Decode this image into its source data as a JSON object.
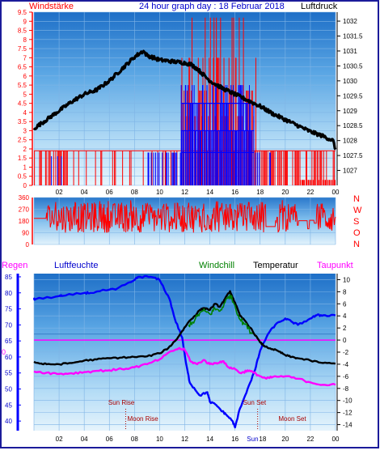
{
  "header": {
    "left_label": "Windstärke",
    "title": "24 hour graph day : 18 Februar 2018",
    "right_label": "Luftdruck"
  },
  "legend2": {
    "rain": "Regen",
    "humidity": "Luftfeuchte",
    "windchill": "Windchill",
    "temperature": "Temperatur",
    "dewpoint": "Taupunkt"
  },
  "compass": [
    "N",
    "W",
    "S",
    "O",
    "N"
  ],
  "sun_moon": {
    "sun_rise": "Sun Rise",
    "sun_set": "Sun Set",
    "moon_rise": "Moon Rise",
    "moon_set": "Moon Set",
    "sun_label": "Sun",
    "sun_time": "18"
  },
  "colors": {
    "wind": "#ff0000",
    "gust": "#0000ff",
    "pressure": "#000000",
    "humidity": "#0000ff",
    "temperature": "#000000",
    "windchill": "#008000",
    "dewpoint": "#ff00ff",
    "zero_line": "#ff00ff",
    "frame": "#0000ff"
  },
  "chart_data": [
    {
      "type": "bar",
      "name": "wind_pressure",
      "x_ticks": [
        "02",
        "04",
        "06",
        "08",
        "10",
        "12",
        "14",
        "16",
        "18",
        "20",
        "22",
        "00"
      ],
      "wind_axis": {
        "ylim": [
          0,
          9.5
        ],
        "ticks": [
          "0",
          "0.5",
          "1",
          "1.5",
          "2",
          "2.5",
          "3",
          "3.5",
          "4",
          "4.5",
          "5",
          "5.5",
          "6",
          "6.5",
          "7",
          "7.5",
          "8",
          "8.5",
          "9",
          "9.5"
        ]
      },
      "pressure_axis": {
        "ylim": [
          1026.5,
          1032.3
        ],
        "ticks": [
          "1027",
          "1027.5",
          "1028",
          "1028.5",
          "1029",
          "1029.5",
          "1030",
          "1030.5",
          "1031",
          "1031.5",
          "1032"
        ]
      },
      "pressure": {
        "x": [
          0,
          1,
          2,
          3,
          4,
          5,
          6,
          7,
          8,
          8.7,
          9,
          10,
          11,
          12,
          12.5,
          13,
          14,
          15,
          16,
          17,
          18,
          19,
          20,
          21,
          22,
          23,
          23.8,
          24
        ],
        "y": [
          1028.4,
          1028.7,
          1029.0,
          1029.3,
          1029.55,
          1029.7,
          1030.0,
          1030.4,
          1030.8,
          1031.0,
          1030.85,
          1030.7,
          1030.65,
          1030.6,
          1030.55,
          1030.4,
          1030.0,
          1029.75,
          1029.55,
          1029.35,
          1029.15,
          1028.9,
          1028.7,
          1028.5,
          1028.3,
          1028.15,
          1028.0,
          1027.7
        ]
      },
      "wind_levels": [
        1.9,
        3.8,
        5.2,
        7.0,
        9.2
      ],
      "gust_levels": [
        1.8,
        3.0,
        4.5,
        5.5
      ]
    },
    {
      "type": "scatter",
      "name": "wind_direction",
      "ylim": [
        0,
        360
      ],
      "y_ticks": [
        "0",
        "90",
        "180",
        "270",
        "360"
      ]
    },
    {
      "type": "line",
      "name": "humidity_temperature",
      "humidity_axis": {
        "ylim": [
          37,
          86
        ],
        "ticks": [
          "40",
          "45",
          "50",
          "55",
          "60",
          "65",
          "70",
          "75",
          "80",
          "85"
        ]
      },
      "temp_axis": {
        "ylim": [
          -15,
          11
        ],
        "ticks": [
          "10",
          "8",
          "6",
          "4",
          "2",
          "0",
          "-2",
          "-4",
          "-6",
          "-8",
          "-10",
          "-12",
          "-14"
        ]
      },
      "humidity": {
        "x": [
          0,
          0.1,
          2,
          2.2,
          4,
          4.5,
          6,
          6.5,
          8,
          8.3,
          9.3,
          10,
          10.8,
          11.2,
          11.8,
          12.1,
          12.4,
          12.8,
          13.2,
          13.8,
          14,
          14.5,
          15,
          15.3,
          15.8,
          16,
          16.4,
          17,
          17.6,
          18,
          18.6,
          19.2,
          20,
          20.5,
          21,
          22,
          22.5,
          23,
          24
        ],
        "y": [
          78,
          78,
          79,
          79,
          80,
          80,
          81,
          81,
          84,
          85,
          85,
          84,
          78,
          72,
          66,
          58,
          52,
          50,
          48,
          49,
          46,
          45,
          43,
          42,
          40,
          38,
          44,
          50,
          56,
          62,
          67,
          70,
          72,
          71,
          70,
          72,
          73,
          73,
          73
        ]
      },
      "temperature": {
        "x": [
          0,
          0.5,
          1,
          2,
          3,
          4,
          5,
          6,
          7,
          8,
          9,
          10,
          10.7,
          11.3,
          11.8,
          12.3,
          12.8,
          13.2,
          13.6,
          14,
          14.4,
          14.8,
          15.2,
          15.6,
          16,
          16.4,
          16.8,
          17.4,
          18,
          18.4,
          19,
          19.5,
          20,
          20.5,
          21,
          22,
          23,
          24
        ],
        "y": [
          -3.6,
          -3.9,
          -4.0,
          -4.0,
          -3.8,
          -3.4,
          -3.2,
          -3.0,
          -2.9,
          -2.8,
          -2.7,
          -2.2,
          -1.3,
          0.0,
          1.5,
          3.0,
          4.0,
          5.0,
          5.3,
          5.0,
          6.0,
          5.5,
          6.8,
          8.1,
          6.2,
          4.0,
          3.2,
          1.5,
          -0.4,
          -1.1,
          -1.5,
          -1.9,
          -2.5,
          -2.8,
          -3.0,
          -3.4,
          -3.8,
          -3.9
        ]
      },
      "windchill": {
        "x": [
          12.3,
          12.8,
          13.2,
          13.6,
          14,
          14.4,
          14.8,
          15.2,
          15.6,
          16,
          16.4,
          16.8,
          17.4
        ],
        "y": [
          2.5,
          3.3,
          4.5,
          4.8,
          4.3,
          5.2,
          4.8,
          6.2,
          7.5,
          5.7,
          3.4,
          2.6,
          1.0
        ]
      },
      "dewpoint": {
        "x": [
          0,
          1,
          2,
          3,
          4,
          5,
          6,
          7,
          8,
          9,
          10,
          11,
          11.5,
          12,
          12.5,
          13,
          13.5,
          14,
          14.5,
          15,
          15.5,
          16,
          16.5,
          17,
          17.5,
          18,
          18.5,
          19,
          20,
          21,
          22,
          23,
          24
        ],
        "y": [
          -5.2,
          -5.4,
          -5.6,
          -5.5,
          -5.3,
          -5.1,
          -5.0,
          -4.8,
          -4.5,
          -4.0,
          -3.2,
          -1.8,
          -1.4,
          -1.6,
          -3.6,
          -4.0,
          -3.3,
          -4.0,
          -3.8,
          -3.5,
          -4.5,
          -4.8,
          -5.5,
          -5.0,
          -5.4,
          -6.0,
          -6.4,
          -6.1,
          -6.0,
          -6.4,
          -7.0,
          -7.4,
          -7.4
        ]
      },
      "sun_rise_hour": 7.2,
      "sun_set_hour": 17.8,
      "moon_rise_hour": 7.3,
      "moon_set_hour": 19.2
    }
  ]
}
